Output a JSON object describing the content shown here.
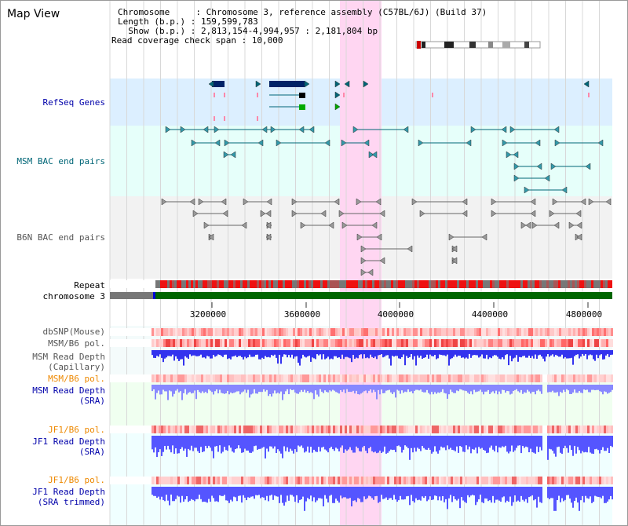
{
  "header": {
    "title": "Map View",
    "chromosome_line": "Chromosome     : Chromosome 3, reference assembly (C57BL/6J) (Build 37)",
    "length_line": "Length (b.p.) : 159,599,783",
    "show_line": "  Show (b.p.) : 2,813,154-4,994,957 : 2,181,804 bp",
    "span_line": "Read coverage check span : 10,000"
  },
  "tracks": {
    "refseq": "RefSeq Genes",
    "msm_bac": "MSM BAC end pairs",
    "b6n_bac": "B6N BAC end pairs",
    "repeat": "Repeat",
    "chromosome": "chromosome 3",
    "dbsnp": "dbSNP(Mouse)",
    "msm_pol": "MSM/B6 pol.",
    "msm_depth_cap_1": "MSM Read Depth",
    "msm_depth_cap_2": "(Capillary)",
    "msm_pol_sra": "MSM/B6 pol.",
    "msm_depth_sra_1": "MSM Read Depth",
    "msm_depth_sra_2": "(SRA)",
    "jf1_pol": "JF1/B6 pol.",
    "jf1_depth_1": "JF1 Read Depth",
    "jf1_depth_2": "(SRA)",
    "jf1_pol_2": "JF1/B6 pol.",
    "jf1_trim_1": "JF1 Read Depth",
    "jf1_trim_2": "(SRA trimmed)"
  },
  "axis": {
    "ticks": [
      "3200000",
      "3600000",
      "4000000",
      "4400000",
      "4800000"
    ]
  },
  "colors": {
    "refseq_bg": "#dcefff",
    "msm_bg": "#e6fffa",
    "b6n_bg": "#f2f2f2",
    "highlight": "#ffd6f2",
    "refseq_text": "#0000aa",
    "msm_text": "#006677",
    "b6n_text": "#555555",
    "orange_text": "#ee8800",
    "navy_text": "#0000aa",
    "chrom_green": "#006600",
    "depth_blue": "#3333ee"
  }
}
